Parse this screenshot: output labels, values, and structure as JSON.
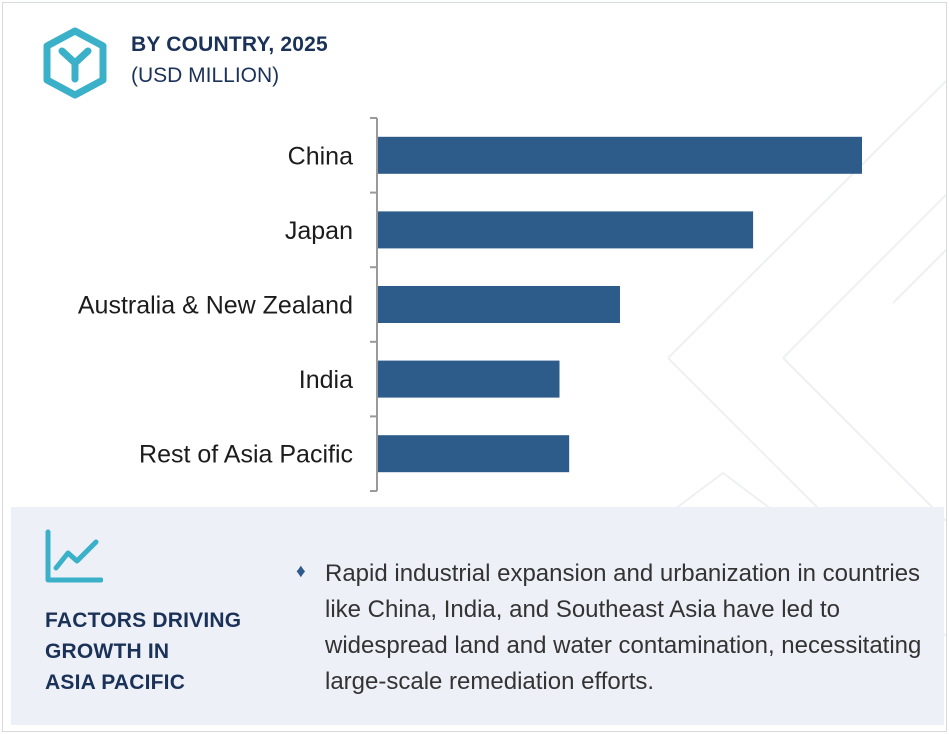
{
  "header": {
    "title": "BY COUNTRY, 2025",
    "subtitle": "(USD MILLION)",
    "logo_icon": "hexagon-y-logo-icon"
  },
  "colors": {
    "bar": "#2d5b8a",
    "logo": "#3bb0c9",
    "heading": "#1b3258",
    "panel_bg": "#eef0f8",
    "axis": "#9a9a9a"
  },
  "chart_data": {
    "type": "bar",
    "orientation": "horizontal",
    "title": "BY COUNTRY, 2025",
    "subtitle": "(USD MILLION)",
    "categories": [
      "China",
      "Japan",
      "Australia & New Zealand",
      "India",
      "Rest of Asia Pacific"
    ],
    "values": [
      100,
      77.5,
      50,
      37.5,
      39.5
    ],
    "value_note": "relative bar lengths; no axis values printed",
    "xlim": [
      0,
      100
    ],
    "grid": false,
    "legend": "none"
  },
  "footer": {
    "icon": "line-chart-icon",
    "heading_lines": [
      "FACTORS DRIVING",
      "GROWTH IN",
      "ASIA PACIFIC"
    ],
    "bullet_icon": "diamond-bullet-icon",
    "bullet_text": "Rapid industrial expansion and urbanization in countries like China, India, and Southeast Asia have led to widespread land and water contamination, necessitating large-scale remediation efforts."
  }
}
